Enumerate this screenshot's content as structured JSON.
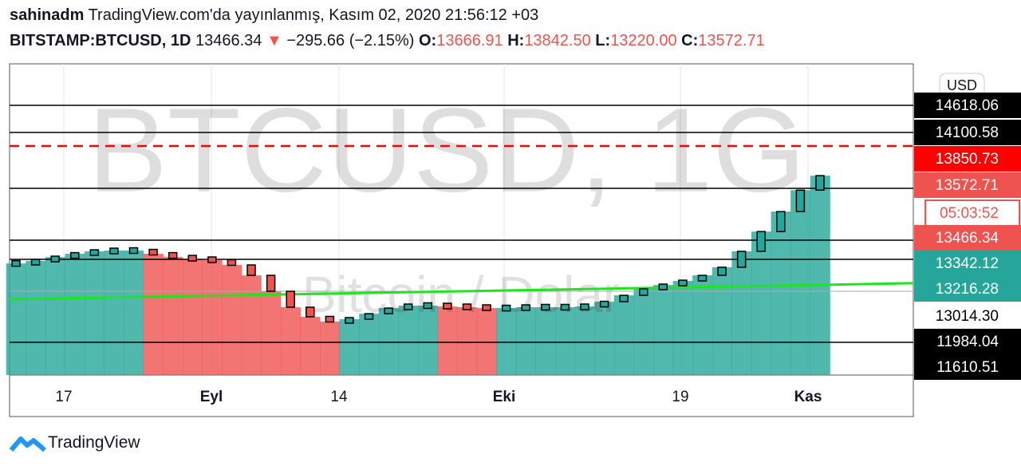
{
  "header": {
    "author": "sahinadm",
    "published": "TradingView.com'da yayınlanmış, Kasım 02, 2020 21:56:12 +03",
    "symbol": "BITSTAMP:BTCUSD, 1D",
    "last": "13466.34",
    "arrow": "▼",
    "change": "−295.66 (−2.15%)",
    "ohlc": [
      {
        "key": "O:",
        "value": "13666.91"
      },
      {
        "key": "H:",
        "value": "13842.50"
      },
      {
        "key": "L:",
        "value": "13220.00"
      },
      {
        "key": "C:",
        "value": "13572.71"
      }
    ]
  },
  "chart_data": {
    "type": "candlestick",
    "watermark": "BTCUSD, 1G",
    "watermark_sub": "Bitcoin / Dolar",
    "currency": "USD",
    "up_color": "#26a69a",
    "down_color": "#ef5350",
    "values": [
      13326,
      13336,
      13357,
      13378,
      13394,
      13399,
      13399,
      13378,
      13357,
      13342,
      13339,
      13320,
      13279,
      13216,
      13086,
      12983,
      12796,
      12889,
      13033,
      13079,
      13099,
      13099,
      13092,
      13086,
      13079,
      13079,
      13086,
      13086,
      13086,
      13092,
      13131,
      13183,
      13226,
      13241,
      13257,
      13279,
      13311,
      13394,
      13484,
      13525,
      13569,
      13656
    ],
    "x_labels": [
      "17",
      "Eyl",
      "14",
      "Eki",
      "19",
      "Kas"
    ],
    "ma": {
      "color": "#1ee61e",
      "values": [
        13151,
        13248
      ]
    },
    "price_labels": [
      {
        "value": 14618.06,
        "bg": "#000000",
        "fg": "#ffffff",
        "line": "solid"
      },
      {
        "value": 14100.58,
        "bg": "#000000",
        "fg": "#ffffff",
        "line": "solid"
      },
      {
        "value": 13850.73,
        "bg": "#ff0000",
        "fg": "#ffffff",
        "line": "dashed"
      },
      {
        "value": 13572.71,
        "bg": "#ef5350",
        "fg": "#ffffff",
        "line": "solid"
      },
      {
        "value": 13466.34,
        "bg": "#ef5350",
        "fg": "#ffffff",
        "line": "solid"
      },
      {
        "value": 13342.12,
        "bg": "#26a69a",
        "fg": "#ffffff",
        "line": "solid"
      },
      {
        "value": 13216.28,
        "bg": "#26a69a",
        "fg": "#ffffff",
        "line": "gray"
      },
      {
        "value": 13014.3,
        "label": "13014.30",
        "bg": "#ffffff",
        "fg": "#000000",
        "line": "none"
      },
      {
        "value": 11984.04,
        "bg": "#000000",
        "fg": "#ffffff",
        "line": "solid"
      },
      {
        "value": 11610.51,
        "bg": "#000000",
        "fg": "#ffffff",
        "line": "none"
      }
    ],
    "countdown": "05:03:52"
  },
  "footer": {
    "brand": "TradingView"
  }
}
